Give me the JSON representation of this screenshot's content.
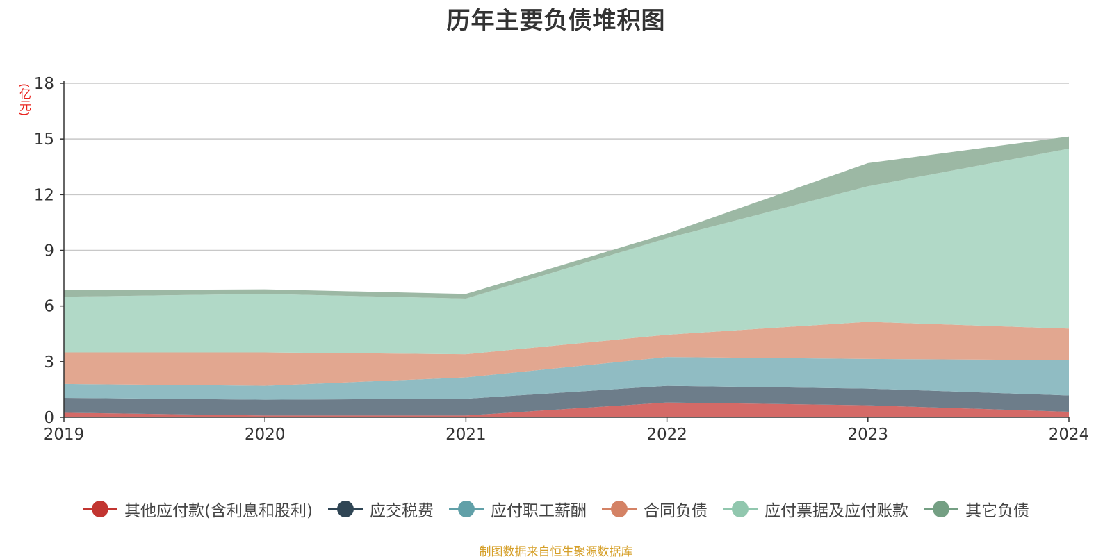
{
  "title": "历年主要负债堆积图",
  "unit_label": "(亿元)",
  "source": "制图数据来自恒生聚源数据库",
  "chart_data": {
    "type": "area",
    "stacked": true,
    "title": "历年主要负债堆积图",
    "ylabel": "(亿元)",
    "x": [
      "2019",
      "2020",
      "2021",
      "2022",
      "2023",
      "2024"
    ],
    "ylim": [
      0,
      18
    ],
    "yticks": [
      0,
      3,
      6,
      9,
      12,
      15,
      18
    ],
    "grid": true,
    "legend_position": "bottom",
    "series": [
      {
        "name": "其他应付款(含利息和股利)",
        "values": [
          0.25,
          0.1,
          0.1,
          0.8,
          0.65,
          0.3
        ],
        "color": "#c23531",
        "fill": "#d46a67"
      },
      {
        "name": "应交税费",
        "values": [
          0.8,
          0.85,
          0.9,
          0.9,
          0.9,
          0.88
        ],
        "color": "#2f4554",
        "fill": "#6d7d8a"
      },
      {
        "name": "应付职工薪酬",
        "values": [
          0.75,
          0.75,
          1.15,
          1.55,
          1.6,
          1.9
        ],
        "color": "#61a0a8",
        "fill": "#90bcc3"
      },
      {
        "name": "合同负债",
        "values": [
          1.7,
          1.8,
          1.25,
          1.2,
          2.0,
          1.7
        ],
        "color": "#d48265",
        "fill": "#e2a790"
      },
      {
        "name": "应付票据及应付账款",
        "values": [
          3.0,
          3.15,
          3.0,
          5.2,
          7.3,
          9.7
        ],
        "color": "#91c7ae",
        "fill": "#b1d9c7"
      },
      {
        "name": "其它负债",
        "values": [
          0.35,
          0.25,
          0.25,
          0.25,
          1.25,
          0.65
        ],
        "color": "#749f83",
        "fill": "#9cb8a4"
      }
    ]
  }
}
